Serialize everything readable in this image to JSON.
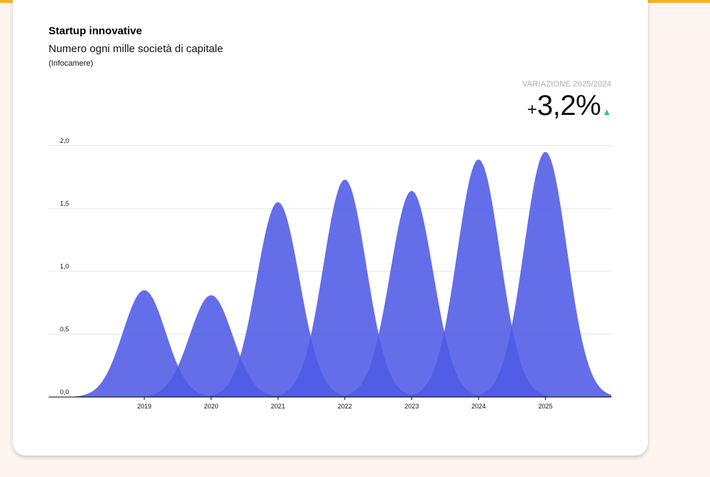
{
  "header": {
    "title": "Startup innovative",
    "subtitle": "Numero ogni mille società di capitale",
    "source": "(Infocamere)"
  },
  "variation": {
    "label": "VARIAZIONE 2025/2024",
    "sign": "+",
    "value": "3,2%",
    "arrow": "▲",
    "arrow_color": "#2ecc71"
  },
  "chart_data": {
    "type": "area",
    "categories": [
      "2019",
      "2020",
      "2021",
      "2022",
      "2023",
      "2024",
      "2025"
    ],
    "values": [
      0.85,
      0.81,
      1.55,
      1.73,
      1.64,
      1.89,
      1.95
    ],
    "ylim": [
      0,
      2.0
    ],
    "yticks": [
      "0,0",
      "0,5",
      "1,0",
      "1,5",
      "2,0"
    ],
    "ytick_values": [
      0,
      0.5,
      1.0,
      1.5,
      2.0
    ],
    "grid": true,
    "colors": {
      "fill": "#4f5ae6",
      "overlap": "#2b35e3",
      "grid": "#e6e6e6",
      "axis": "#000000"
    }
  }
}
